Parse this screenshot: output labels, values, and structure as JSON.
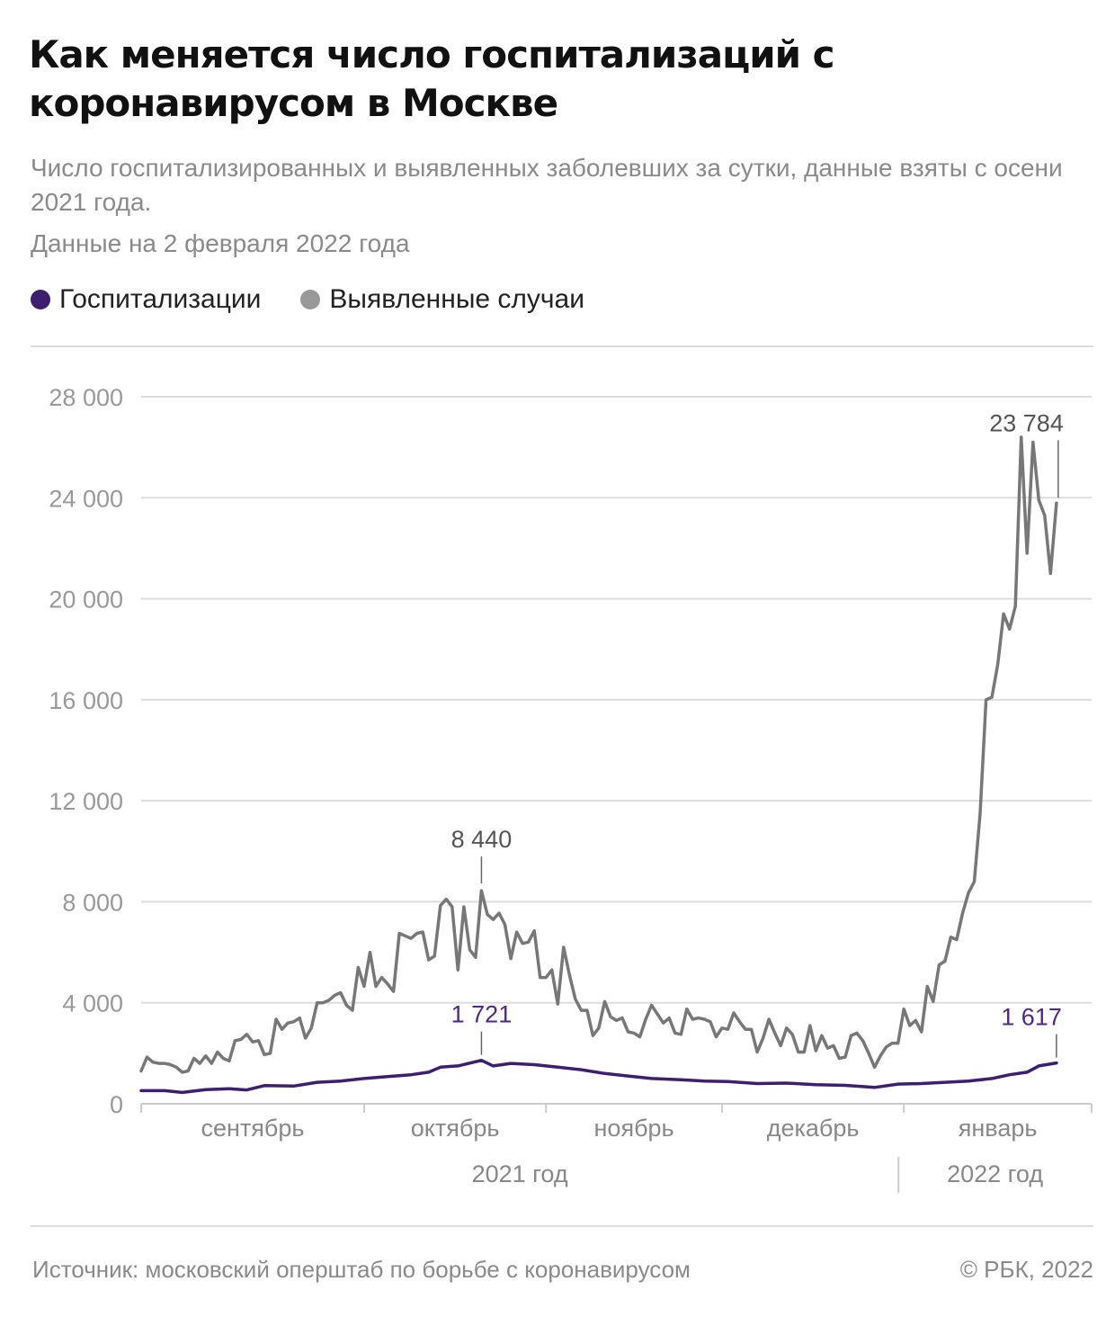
{
  "header": {
    "title": "Как меняется число госпитализаций с коронавирусом в Москве",
    "subtitle": "Число госпитализированных и выявленных заболевших за сутки, данные взяты с осени 2021 года.",
    "date_note": "Данные на 2 февраля 2022 года"
  },
  "legend": [
    {
      "label": "Госпитализации",
      "color": "#3d1f6e"
    },
    {
      "label": "Выявленные случаи",
      "color": "#999999"
    }
  ],
  "chart_data": {
    "type": "line",
    "x_unit": "day",
    "x_start": "2021-08-24",
    "x_end": "2022-02-02",
    "ylim": [
      0,
      28000
    ],
    "yticks": [
      0,
      4000,
      8000,
      12000,
      16000,
      20000,
      24000,
      28000
    ],
    "ytick_labels": [
      "0",
      "4 000",
      "8 000",
      "12 000",
      "16 000",
      "20 000",
      "24 000",
      "28 000"
    ],
    "grid": true,
    "months": [
      {
        "label": "сентябрь",
        "start": "2021-09-01"
      },
      {
        "label": "октябрь",
        "start": "2021-10-01"
      },
      {
        "label": "ноябрь",
        "start": "2021-11-01"
      },
      {
        "label": "декабрь",
        "start": "2021-12-01"
      },
      {
        "label": "январь",
        "start": "2022-01-01"
      }
    ],
    "years": [
      {
        "label": "2021 год"
      },
      {
        "label": "2022 год"
      }
    ],
    "series": [
      {
        "name": "Выявленные случаи",
        "color": "#777777",
        "points": [
          [
            "2021-08-24",
            1300
          ],
          [
            "2021-08-25",
            1850
          ],
          [
            "2021-08-26",
            1650
          ],
          [
            "2021-08-27",
            1600
          ],
          [
            "2021-08-28",
            1600
          ],
          [
            "2021-08-29",
            1550
          ],
          [
            "2021-08-30",
            1450
          ],
          [
            "2021-08-31",
            1250
          ],
          [
            "2021-09-01",
            1300
          ],
          [
            "2021-09-02",
            1800
          ],
          [
            "2021-09-03",
            1600
          ],
          [
            "2021-09-04",
            1900
          ],
          [
            "2021-09-05",
            1600
          ],
          [
            "2021-09-06",
            2050
          ],
          [
            "2021-09-07",
            1800
          ],
          [
            "2021-09-08",
            1700
          ],
          [
            "2021-09-09",
            2500
          ],
          [
            "2021-09-10",
            2550
          ],
          [
            "2021-09-11",
            2750
          ],
          [
            "2021-09-12",
            2450
          ],
          [
            "2021-09-13",
            2500
          ],
          [
            "2021-09-14",
            1950
          ],
          [
            "2021-09-15",
            2000
          ],
          [
            "2021-09-16",
            3350
          ],
          [
            "2021-09-17",
            2950
          ],
          [
            "2021-09-18",
            3200
          ],
          [
            "2021-09-19",
            3250
          ],
          [
            "2021-09-20",
            3400
          ],
          [
            "2021-09-21",
            2600
          ],
          [
            "2021-09-22",
            3000
          ],
          [
            "2021-09-23",
            4000
          ],
          [
            "2021-09-24",
            4000
          ],
          [
            "2021-09-25",
            4100
          ],
          [
            "2021-09-26",
            4300
          ],
          [
            "2021-09-27",
            4400
          ],
          [
            "2021-09-28",
            3900
          ],
          [
            "2021-09-29",
            3700
          ],
          [
            "2021-09-30",
            5400
          ],
          [
            "2021-10-01",
            4650
          ],
          [
            "2021-10-02",
            6000
          ],
          [
            "2021-10-03",
            4650
          ],
          [
            "2021-10-04",
            5000
          ],
          [
            "2021-10-05",
            4750
          ],
          [
            "2021-10-06",
            4450
          ],
          [
            "2021-10-07",
            6750
          ],
          [
            "2021-10-08",
            6650
          ],
          [
            "2021-10-09",
            6550
          ],
          [
            "2021-10-10",
            6750
          ],
          [
            "2021-10-11",
            6800
          ],
          [
            "2021-10-12",
            5700
          ],
          [
            "2021-10-13",
            5850
          ],
          [
            "2021-10-14",
            7850
          ],
          [
            "2021-10-15",
            8100
          ],
          [
            "2021-10-16",
            7800
          ],
          [
            "2021-10-17",
            5300
          ],
          [
            "2021-10-18",
            7800
          ],
          [
            "2021-10-19",
            6100
          ],
          [
            "2021-10-20",
            5800
          ],
          [
            "2021-10-21",
            8440
          ],
          [
            "2021-10-22",
            7500
          ],
          [
            "2021-10-23",
            7300
          ],
          [
            "2021-10-24",
            7550
          ],
          [
            "2021-10-25",
            7100
          ],
          [
            "2021-10-26",
            5750
          ],
          [
            "2021-10-27",
            6800
          ],
          [
            "2021-10-28",
            6350
          ],
          [
            "2021-10-29",
            6400
          ],
          [
            "2021-10-30",
            6850
          ],
          [
            "2021-10-31",
            5000
          ],
          [
            "2021-11-01",
            5000
          ],
          [
            "2021-11-02",
            5300
          ],
          [
            "2021-11-03",
            3950
          ],
          [
            "2021-11-04",
            6200
          ],
          [
            "2021-11-05",
            5100
          ],
          [
            "2021-11-06",
            4150
          ],
          [
            "2021-11-07",
            3700
          ],
          [
            "2021-11-08",
            3700
          ],
          [
            "2021-11-09",
            2700
          ],
          [
            "2021-11-10",
            3000
          ],
          [
            "2021-11-11",
            4050
          ],
          [
            "2021-11-12",
            3450
          ],
          [
            "2021-11-13",
            3300
          ],
          [
            "2021-11-14",
            3400
          ],
          [
            "2021-11-15",
            2850
          ],
          [
            "2021-11-16",
            2800
          ],
          [
            "2021-11-17",
            2650
          ],
          [
            "2021-11-18",
            3350
          ],
          [
            "2021-11-19",
            3900
          ],
          [
            "2021-11-20",
            3550
          ],
          [
            "2021-11-21",
            3200
          ],
          [
            "2021-11-22",
            3400
          ],
          [
            "2021-11-23",
            2800
          ],
          [
            "2021-11-24",
            2750
          ],
          [
            "2021-11-25",
            3750
          ],
          [
            "2021-11-26",
            3350
          ],
          [
            "2021-11-27",
            3400
          ],
          [
            "2021-11-28",
            3350
          ],
          [
            "2021-11-29",
            3250
          ],
          [
            "2021-11-30",
            2650
          ],
          [
            "2021-12-01",
            3000
          ],
          [
            "2021-12-02",
            2950
          ],
          [
            "2021-12-03",
            3600
          ],
          [
            "2021-12-04",
            3250
          ],
          [
            "2021-12-05",
            2950
          ],
          [
            "2021-12-06",
            2950
          ],
          [
            "2021-12-07",
            2050
          ],
          [
            "2021-12-08",
            2600
          ],
          [
            "2021-12-09",
            3350
          ],
          [
            "2021-12-10",
            2800
          ],
          [
            "2021-12-11",
            2300
          ],
          [
            "2021-12-12",
            3000
          ],
          [
            "2021-12-13",
            2750
          ],
          [
            "2021-12-14",
            2050
          ],
          [
            "2021-12-15",
            2050
          ],
          [
            "2021-12-16",
            3100
          ],
          [
            "2021-12-17",
            2100
          ],
          [
            "2021-12-18",
            2700
          ],
          [
            "2021-12-19",
            2200
          ],
          [
            "2021-12-20",
            2300
          ],
          [
            "2021-12-21",
            1800
          ],
          [
            "2021-12-22",
            1850
          ],
          [
            "2021-12-23",
            2700
          ],
          [
            "2021-12-24",
            2800
          ],
          [
            "2021-12-25",
            2500
          ],
          [
            "2021-12-26",
            2000
          ],
          [
            "2021-12-27",
            1450
          ],
          [
            "2021-12-28",
            1900
          ],
          [
            "2021-12-29",
            2250
          ],
          [
            "2021-12-30",
            2400
          ],
          [
            "2021-12-31",
            2400
          ],
          [
            "2022-01-01",
            3750
          ],
          [
            "2022-01-02",
            3100
          ],
          [
            "2022-01-03",
            3300
          ],
          [
            "2022-01-04",
            2850
          ],
          [
            "2022-01-05",
            4650
          ],
          [
            "2022-01-06",
            4050
          ],
          [
            "2022-01-07",
            5500
          ],
          [
            "2022-01-08",
            5650
          ],
          [
            "2022-01-09",
            6600
          ],
          [
            "2022-01-10",
            6500
          ],
          [
            "2022-01-11",
            7550
          ],
          [
            "2022-01-12",
            8350
          ],
          [
            "2022-01-13",
            8800
          ],
          [
            "2022-01-14",
            11500
          ],
          [
            "2022-01-15",
            16000
          ],
          [
            "2022-01-16",
            16100
          ],
          [
            "2022-01-17",
            17400
          ],
          [
            "2022-01-18",
            19400
          ],
          [
            "2022-01-19",
            18800
          ],
          [
            "2022-01-20",
            19700
          ],
          [
            "2022-01-21",
            26400
          ],
          [
            "2022-01-22",
            21800
          ],
          [
            "2022-01-23",
            26200
          ],
          [
            "2022-01-24",
            23900
          ],
          [
            "2022-01-25",
            23300
          ],
          [
            "2022-01-26",
            21000
          ],
          [
            "2022-01-27",
            23784
          ]
        ]
      },
      {
        "name": "Госпитализации",
        "color": "#3d1f6e",
        "points": [
          [
            "2021-08-24",
            520
          ],
          [
            "2021-08-28",
            520
          ],
          [
            "2021-08-31",
            450
          ],
          [
            "2021-09-04",
            560
          ],
          [
            "2021-09-08",
            600
          ],
          [
            "2021-09-11",
            550
          ],
          [
            "2021-09-14",
            720
          ],
          [
            "2021-09-19",
            700
          ],
          [
            "2021-09-23",
            850
          ],
          [
            "2021-09-27",
            900
          ],
          [
            "2021-10-01",
            1000
          ],
          [
            "2021-10-05",
            1080
          ],
          [
            "2021-10-09",
            1150
          ],
          [
            "2021-10-12",
            1250
          ],
          [
            "2021-10-14",
            1450
          ],
          [
            "2021-10-17",
            1500
          ],
          [
            "2021-10-21",
            1721
          ],
          [
            "2021-10-23",
            1500
          ],
          [
            "2021-10-26",
            1600
          ],
          [
            "2021-10-30",
            1550
          ],
          [
            "2021-11-03",
            1450
          ],
          [
            "2021-11-07",
            1350
          ],
          [
            "2021-11-11",
            1200
          ],
          [
            "2021-11-15",
            1100
          ],
          [
            "2021-11-19",
            1000
          ],
          [
            "2021-11-24",
            950
          ],
          [
            "2021-11-28",
            900
          ],
          [
            "2021-12-02",
            880
          ],
          [
            "2021-12-07",
            800
          ],
          [
            "2021-12-12",
            820
          ],
          [
            "2021-12-17",
            760
          ],
          [
            "2021-12-22",
            730
          ],
          [
            "2021-12-27",
            650
          ],
          [
            "2021-12-31",
            780
          ],
          [
            "2022-01-04",
            800
          ],
          [
            "2022-01-08",
            850
          ],
          [
            "2022-01-12",
            900
          ],
          [
            "2022-01-16",
            1000
          ],
          [
            "2022-01-19",
            1150
          ],
          [
            "2022-01-22",
            1250
          ],
          [
            "2022-01-24",
            1500
          ],
          [
            "2022-01-27",
            1617
          ]
        ]
      }
    ],
    "annotations": [
      {
        "label": "8 440",
        "series": "Выявленные случаи",
        "x": "2021-10-21",
        "y": 8440
      },
      {
        "label": "23 784",
        "series": "Выявленные случаи",
        "x": "2022-01-27",
        "y": 23784
      },
      {
        "label": "1 721",
        "series": "Госпитализации",
        "x": "2021-10-21",
        "y": 1721
      },
      {
        "label": "1 617",
        "series": "Госпитализации",
        "x": "2022-01-27",
        "y": 1617
      }
    ]
  },
  "footer": {
    "source": "Источник: московский оперштаб по борьбе с коронавирусом",
    "copyright": "© РБК, 2022"
  }
}
